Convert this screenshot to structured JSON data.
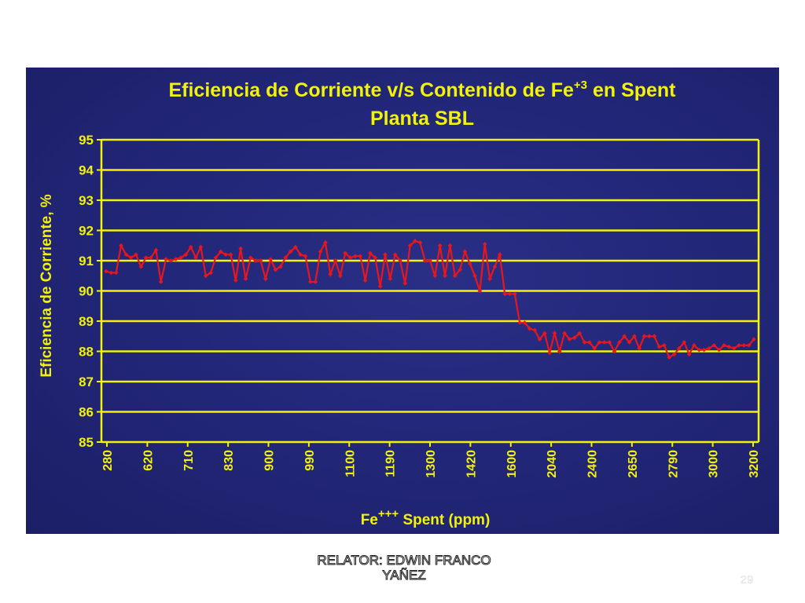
{
  "slide": {
    "footer_line1": "RELATOR: EDWIN FRANCO",
    "footer_line2": "YAÑEZ",
    "page_number": "29"
  },
  "chart_data": {
    "type": "line",
    "title_line1_pre": "Eficiencia de Corriente v/s Contenido de Fe",
    "title_line1_sup": "+3",
    "title_line1_post": " en Spent",
    "title_line2": "Planta SBL",
    "xlabel_pre": "Fe",
    "xlabel_sup": "+++",
    "xlabel_post": " Spent (ppm)",
    "ylabel": "Eficiencia de Corriente, %",
    "ylim": [
      85,
      95
    ],
    "yticks": [
      85,
      86,
      87,
      88,
      89,
      90,
      91,
      92,
      93,
      94,
      95
    ],
    "grid": true,
    "colors": {
      "background": "#23277a",
      "grid": "#f2f20a",
      "text": "#f2f20a",
      "series": "#e8161b"
    },
    "x_tick_labels": [
      "280",
      "620",
      "710",
      "830",
      "900",
      "990",
      "1100",
      "1190",
      "1300",
      "1420",
      "1600",
      "2040",
      "2400",
      "2650",
      "2790",
      "3000",
      "3200"
    ],
    "series": [
      {
        "values": [
          90.65,
          90.6,
          90.6,
          91.5,
          91.2,
          91.1,
          91.2,
          90.8,
          91.1,
          91.1,
          91.35,
          90.3,
          91.05,
          91.0,
          91.05,
          91.1,
          91.2,
          91.45,
          91.1,
          91.45,
          90.5,
          90.6,
          91.1,
          91.3,
          91.2,
          91.2,
          90.35,
          91.4,
          90.4,
          91.1,
          91.0,
          91.0,
          90.4,
          91.05,
          90.7,
          90.8,
          91.1,
          91.3,
          91.45,
          91.2,
          91.15,
          90.3,
          90.3,
          91.3,
          91.6,
          90.55,
          91.0,
          90.5,
          91.25,
          91.1,
          91.15,
          91.15,
          90.35,
          91.25,
          91.1,
          90.15,
          91.2,
          90.4,
          91.2,
          91.0,
          90.25,
          91.5,
          91.65,
          91.6,
          91.0,
          91.0,
          90.5,
          91.5,
          90.5,
          91.5,
          90.5,
          90.7,
          91.3,
          90.9,
          90.5,
          90.0,
          91.55,
          90.4,
          90.8,
          91.2,
          89.9,
          89.9,
          89.9,
          88.95,
          88.95,
          88.75,
          88.7,
          88.4,
          88.6,
          87.95,
          88.6,
          88.0,
          88.6,
          88.4,
          88.45,
          88.6,
          88.3,
          88.3,
          88.1,
          88.3,
          88.3,
          88.3,
          88.0,
          88.3,
          88.5,
          88.3,
          88.5,
          88.1,
          88.5,
          88.5,
          88.5,
          88.15,
          88.2,
          87.8,
          87.9,
          88.1,
          88.3,
          87.9,
          88.2,
          88.05,
          88.05,
          88.1,
          88.2,
          88.05,
          88.2,
          88.15,
          88.1,
          88.2,
          88.2,
          88.2,
          88.4
        ]
      }
    ]
  }
}
